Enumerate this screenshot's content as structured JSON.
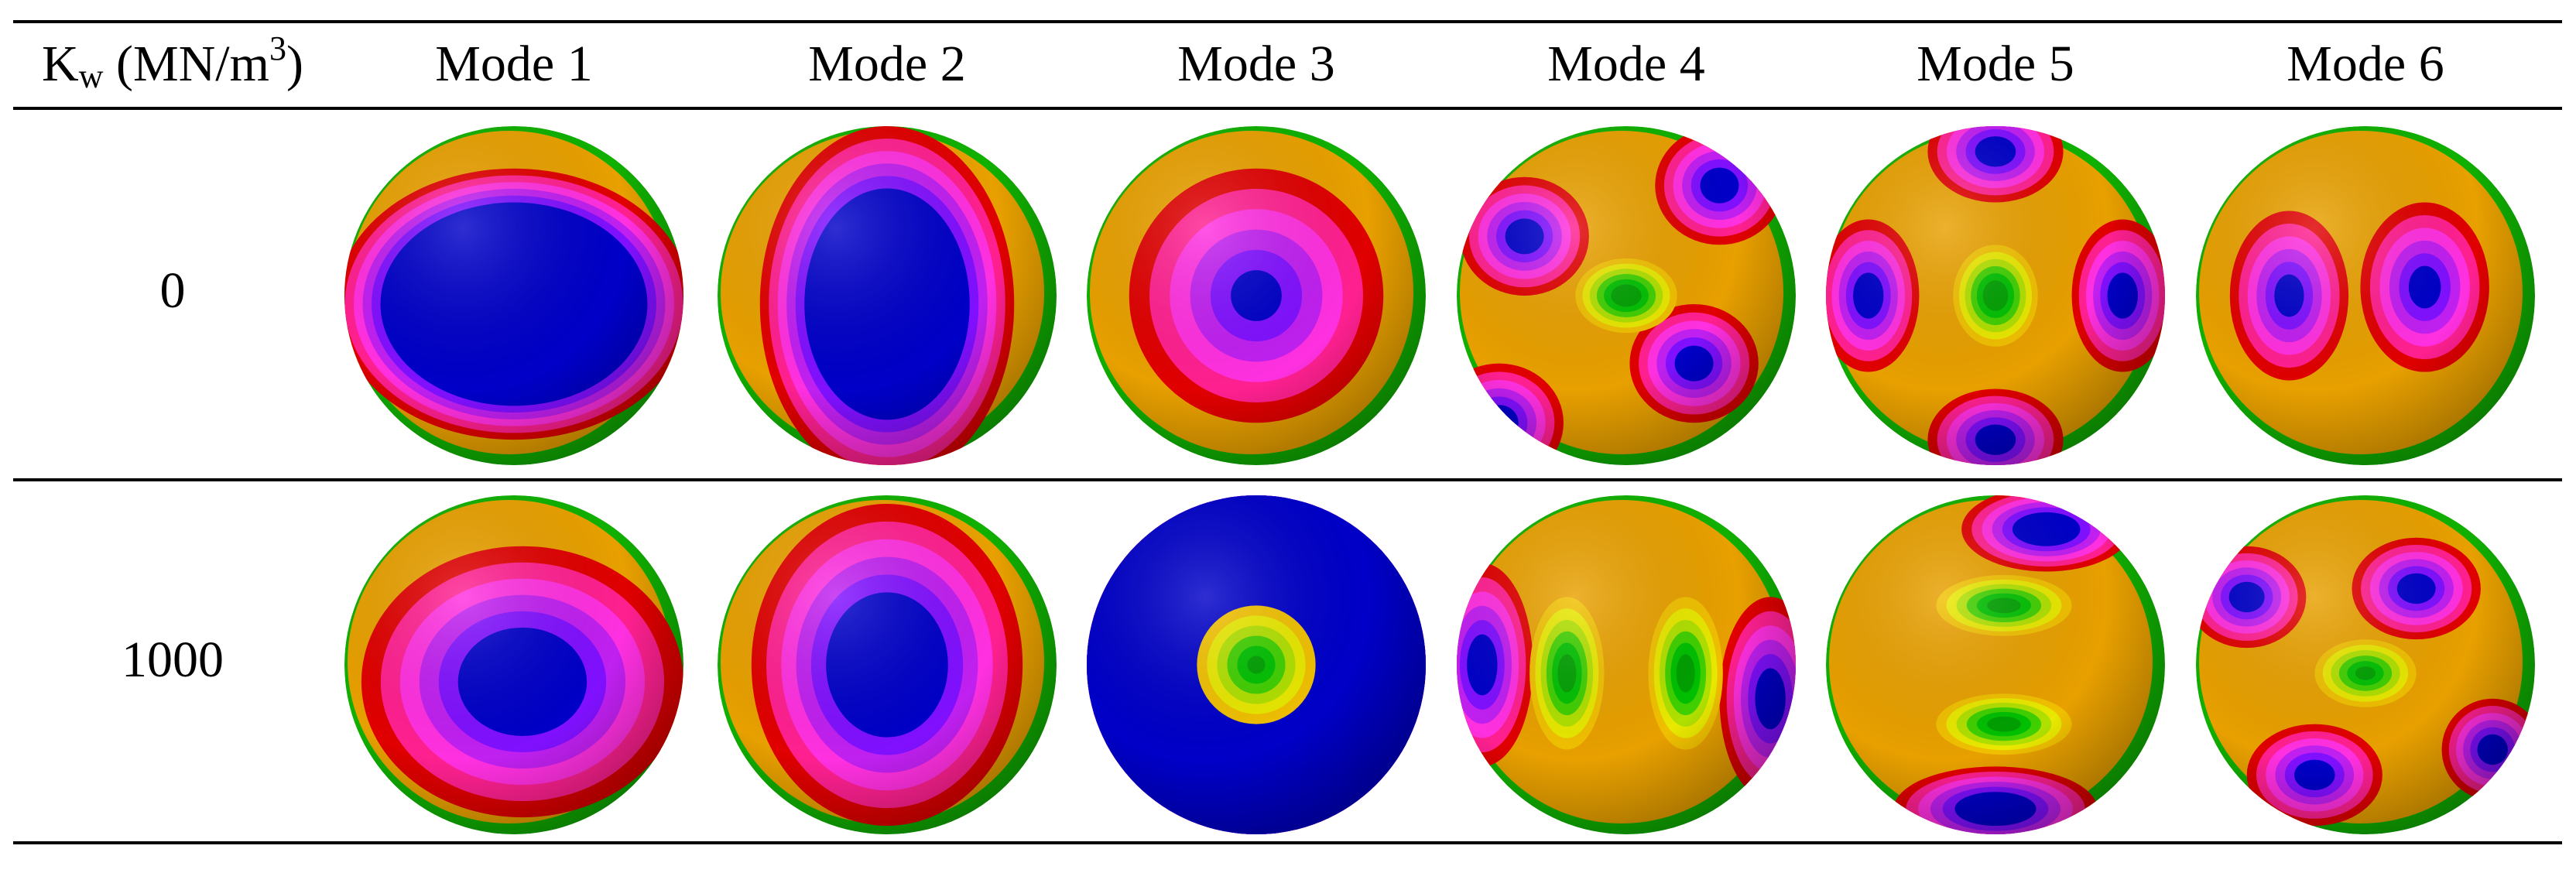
{
  "table": {
    "header": {
      "label": [
        "K",
        "w",
        " (MN/m",
        "3",
        ")"
      ],
      "columns": [
        "Mode 1",
        "Mode 2",
        "Mode 3",
        "Mode 4",
        "Mode 5",
        "Mode 6"
      ]
    },
    "rows": [
      {
        "label": "0"
      },
      {
        "label": "1000"
      }
    ]
  }
}
